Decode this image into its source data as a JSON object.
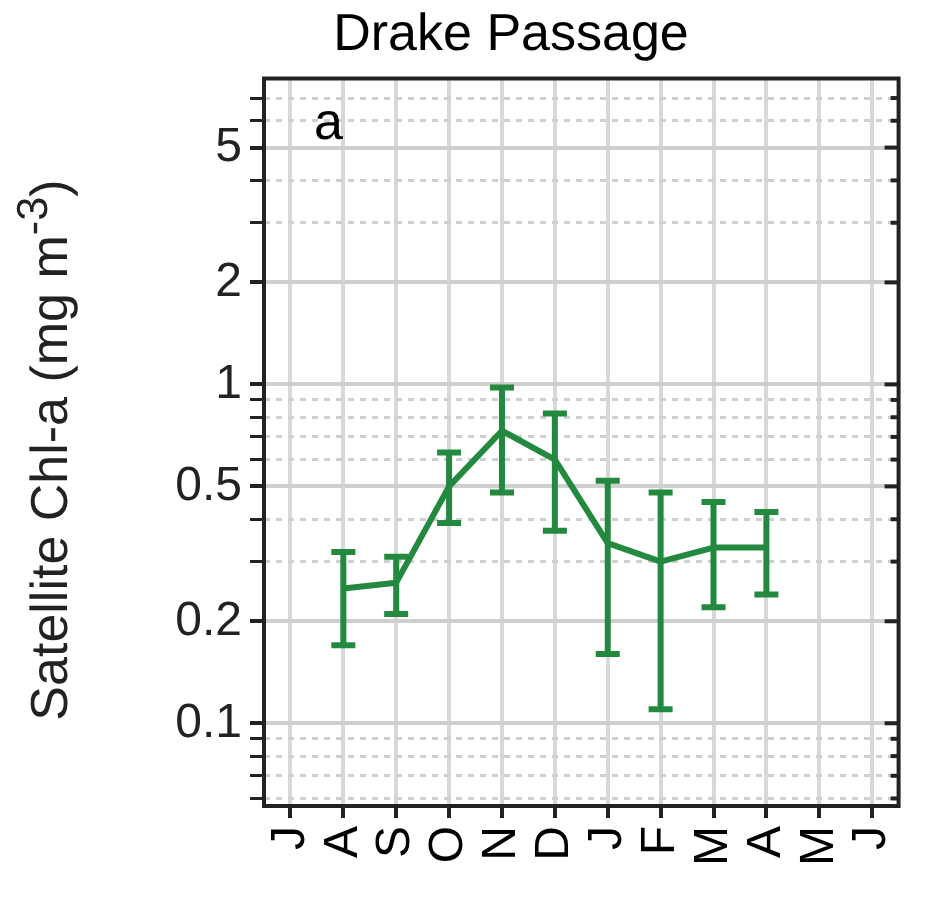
{
  "chart_data": {
    "type": "line",
    "title": "Drake Passage",
    "ylabel": "Satellite Chl-a (mg m$^{-3}$)",
    "categories": [
      "J",
      "A",
      "S",
      "O",
      "N",
      "D",
      "J",
      "F",
      "M",
      "A",
      "M",
      "J"
    ],
    "series": [
      {
        "color": "#23893f",
        "values": [
          null,
          0.25,
          0.26,
          0.5,
          0.73,
          0.6,
          0.34,
          0.3,
          0.33,
          0.33,
          null,
          null
        ],
        "errors": [
          null,
          [
            0.17,
            0.32
          ],
          [
            0.21,
            0.31
          ],
          [
            0.39,
            0.63
          ],
          [
            0.48,
            0.98
          ],
          [
            0.37,
            0.82
          ],
          [
            0.16,
            0.52
          ],
          [
            0.11,
            0.48
          ],
          [
            0.22,
            0.45
          ],
          [
            0.24,
            0.42
          ],
          null,
          null
        ]
      }
    ],
    "log": "y",
    "ylim": [
      0.057,
      8
    ],
    "yticks": [
      {
        "value": 0.06,
        "label": null
      },
      {
        "value": 0.07,
        "label": null
      },
      {
        "value": 0.08,
        "label": null
      },
      {
        "value": 0.09,
        "label": null
      },
      0.1,
      0.2,
      {
        "value": 0.3,
        "label": null
      },
      {
        "value": 0.4,
        "label": null
      },
      0.5,
      {
        "value": 0.6,
        "label": null
      },
      {
        "value": 0.7,
        "label": null
      },
      {
        "value": 0.8,
        "label": null
      },
      {
        "value": 0.9,
        "label": null
      },
      1,
      2,
      {
        "value": 3,
        "label": null
      },
      {
        "value": 4,
        "label": null
      },
      5,
      {
        "value": 6,
        "label": null
      },
      {
        "value": 7,
        "label": null
      }
    ],
    "grid": true,
    "marker": "none",
    "line_style": "solid",
    "legend": false,
    "annotations": [
      "a"
    ]
  }
}
